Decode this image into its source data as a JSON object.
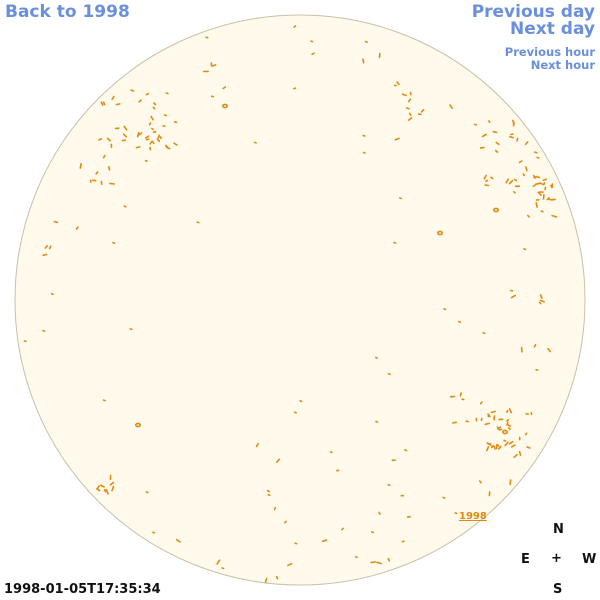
{
  "nav": {
    "back_label": "Back to 1998",
    "previous_day_label": "Previous day",
    "next_day_label": "Next day",
    "previous_hour_label": "Previous hour",
    "next_hour_label": "Next hour"
  },
  "timestamp": "1998-01-05T17:35:34",
  "year_label": "1998",
  "compass": {
    "n": "N",
    "e": "E",
    "center": "+",
    "w": "W",
    "s": "S"
  },
  "colors": {
    "link": "#6a8fdc",
    "disk_fill": "#fffaeb",
    "disk_outline": "#c8c0a8",
    "feature": "#e08a10"
  },
  "icons": {
    "sun_disk": "sun-disk-icon"
  }
}
